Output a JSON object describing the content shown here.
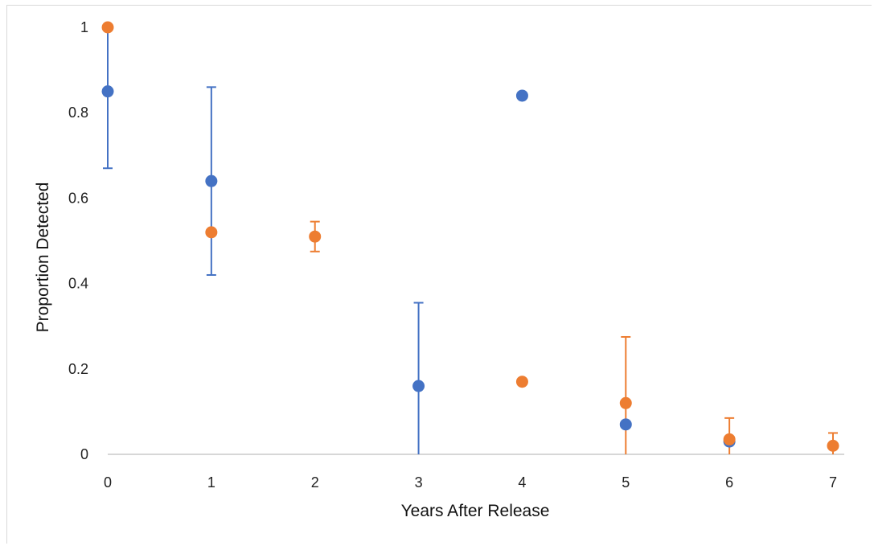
{
  "chart_data": {
    "type": "scatter",
    "title": "",
    "xlabel": "Years After Release",
    "ylabel": "Proportion Detected",
    "xlim": [
      0,
      7
    ],
    "ylim": [
      0,
      1
    ],
    "x_ticks": [
      "0",
      "1",
      "2",
      "3",
      "4",
      "5",
      "6",
      "7"
    ],
    "y_ticks": [
      "0",
      "0.2",
      "0.4",
      "0.6",
      "0.8",
      "1"
    ],
    "grid": false,
    "legend": "none",
    "series": [
      {
        "color": "#4472c4",
        "points": [
          {
            "x": 0,
            "y": 0.85,
            "err_low": 0.67,
            "err_high": 1.0
          },
          {
            "x": 1,
            "y": 0.64,
            "err_low": 0.42,
            "err_high": 0.86
          },
          {
            "x": 3,
            "y": 0.16,
            "err_low": 0.0,
            "err_high": 0.355
          },
          {
            "x": 4,
            "y": 0.84
          },
          {
            "x": 5,
            "y": 0.07
          },
          {
            "x": 6,
            "y": 0.03
          }
        ]
      },
      {
        "color": "#ed7d31",
        "points": [
          {
            "x": 0,
            "y": 1.0
          },
          {
            "x": 1,
            "y": 0.52
          },
          {
            "x": 2,
            "y": 0.51,
            "err_low": 0.475,
            "err_high": 0.545
          },
          {
            "x": 4,
            "y": 0.17
          },
          {
            "x": 5,
            "y": 0.12,
            "err_low": 0.0,
            "err_high": 0.275
          },
          {
            "x": 6,
            "y": 0.035,
            "err_low": 0.0,
            "err_high": 0.085
          },
          {
            "x": 7,
            "y": 0.02,
            "err_low": 0.0,
            "err_high": 0.05
          }
        ]
      }
    ]
  }
}
